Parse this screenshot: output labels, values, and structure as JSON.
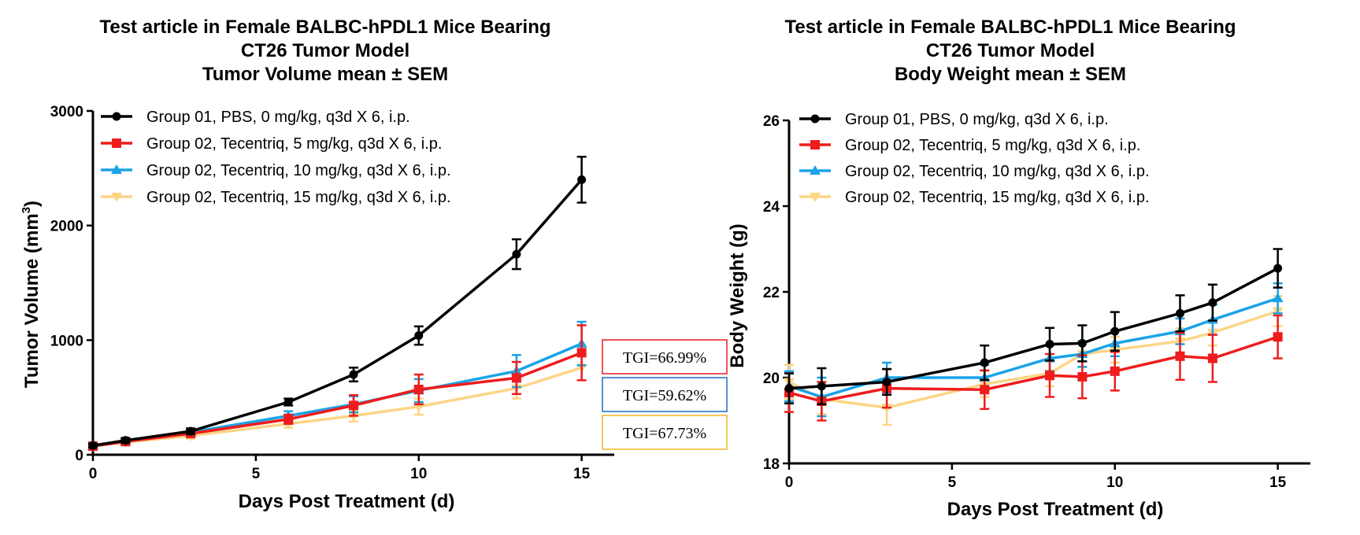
{
  "chart_data": [
    {
      "type": "line",
      "title_lines": [
        "Test article in Female BALBC-hPDL1 Mice Bearing",
        "CT26 Tumor Model",
        "Tumor Volume mean ± SEM"
      ],
      "xlabel": "Days Post Treatment (d)",
      "ylabel": "Tumor Volume (mm",
      "ylabel_sup": "3",
      "ylabel_close": ")",
      "xlim": [
        0,
        16
      ],
      "ylim": [
        0,
        3000
      ],
      "xticks": [
        0,
        5,
        10,
        15
      ],
      "yticks": [
        0,
        1000,
        2000,
        3000
      ],
      "legend_position": "top-left",
      "series": [
        {
          "name": "Group 01, PBS, 0 mg/kg, q3d X 6, i.p.",
          "color": "#000000",
          "marker": "circle",
          "x": [
            0,
            1,
            3,
            6,
            8,
            10,
            13,
            15
          ],
          "y": [
            80,
            125,
            205,
            460,
            700,
            1040,
            1750,
            2400
          ],
          "err": [
            15,
            20,
            25,
            30,
            60,
            80,
            130,
            200
          ]
        },
        {
          "name": "Group 02, Tecentriq, 5 mg/kg, q3d X 6, i.p.",
          "color": "#ee1c1c",
          "marker": "square",
          "x": [
            0,
            1,
            3,
            6,
            8,
            10,
            13,
            15
          ],
          "y": [
            75,
            115,
            185,
            310,
            430,
            570,
            670,
            890
          ],
          "err": [
            15,
            20,
            25,
            40,
            90,
            130,
            140,
            240
          ]
        },
        {
          "name": "Group 02, Tecentriq, 10 mg/kg, q3d X 6, i.p.",
          "color": "#1aa3e8",
          "marker": "triangle-up",
          "x": [
            0,
            1,
            3,
            6,
            8,
            10,
            13,
            15
          ],
          "y": [
            75,
            120,
            195,
            340,
            440,
            560,
            730,
            970
          ],
          "err": [
            15,
            20,
            25,
            40,
            70,
            100,
            140,
            190
          ]
        },
        {
          "name": "Group 02, Tecentriq, 15 mg/kg, q3d X 6, i.p.",
          "color": "#fdd585",
          "marker": "triangle-down",
          "x": [
            0,
            1,
            3,
            6,
            8,
            10,
            13,
            15
          ],
          "y": [
            75,
            110,
            165,
            270,
            340,
            420,
            580,
            760
          ],
          "err": [
            15,
            20,
            25,
            35,
            50,
            70,
            90,
            110
          ]
        }
      ],
      "annotations": [
        {
          "text": "TGI=66.99%",
          "color": "#ee1c1c"
        },
        {
          "text": "TGI=59.62%",
          "color": "#1a6fc0"
        },
        {
          "text": "TGI=67.73%",
          "color": "#f2b627"
        }
      ]
    },
    {
      "type": "line",
      "title_lines": [
        "Test article in Female BALBC-hPDL1 Mice Bearing",
        "CT26 Tumor Model",
        "Body Weight mean ± SEM"
      ],
      "xlabel": "Days Post Treatment (d)",
      "ylabel": "Body Weight (g)",
      "xlim": [
        0,
        16
      ],
      "ylim": [
        18,
        26
      ],
      "xticks": [
        0,
        5,
        10,
        15
      ],
      "yticks": [
        18,
        20,
        22,
        24,
        26
      ],
      "legend_position": "top-left",
      "series": [
        {
          "name": "Group 01, PBS, 0 mg/kg, q3d X 6, i.p.",
          "color": "#000000",
          "marker": "circle",
          "x": [
            0,
            1,
            3,
            6,
            8,
            9,
            10,
            12,
            13,
            15
          ],
          "y": [
            19.75,
            19.8,
            19.9,
            20.35,
            20.78,
            20.8,
            21.08,
            21.5,
            21.75,
            22.55
          ],
          "err": [
            0.35,
            0.42,
            0.3,
            0.4,
            0.38,
            0.42,
            0.45,
            0.42,
            0.42,
            0.45
          ]
        },
        {
          "name": "Group 02, Tecentriq, 5 mg/kg, q3d X 6, i.p.",
          "color": "#ee1c1c",
          "marker": "square",
          "x": [
            0,
            1,
            3,
            6,
            8,
            9,
            10,
            12,
            13,
            15
          ],
          "y": [
            19.65,
            19.45,
            19.75,
            19.72,
            20.05,
            20.02,
            20.15,
            20.5,
            20.45,
            20.95
          ],
          "err": [
            0.45,
            0.45,
            0.45,
            0.45,
            0.5,
            0.5,
            0.45,
            0.55,
            0.55,
            0.5
          ]
        },
        {
          "name": "Group 02, Tecentriq, 10 mg/kg, q3d X 6, i.p.",
          "color": "#1aa3e8",
          "marker": "triangle-up",
          "x": [
            0,
            1,
            3,
            6,
            8,
            9,
            10,
            12,
            13,
            15
          ],
          "y": [
            19.8,
            19.55,
            20.0,
            20.0,
            20.45,
            20.55,
            20.8,
            21.08,
            21.35,
            21.85
          ],
          "err": [
            0.35,
            0.45,
            0.35,
            0.3,
            0.3,
            0.3,
            0.3,
            0.3,
            0.35,
            0.35
          ]
        },
        {
          "name": "Group 02, Tecentriq, 15 mg/kg, q3d X 6, i.p.",
          "color": "#fdd585",
          "marker": "triangle-down",
          "x": [
            0,
            1,
            3,
            6,
            8,
            9,
            10,
            12,
            13,
            15
          ],
          "y": [
            19.9,
            19.5,
            19.3,
            19.85,
            20.1,
            20.55,
            20.65,
            20.85,
            21.05,
            21.55
          ],
          "err": [
            0.4,
            0.35,
            0.4,
            0.3,
            0.3,
            0.3,
            0.3,
            0.3,
            0.3,
            0.35
          ]
        }
      ]
    }
  ]
}
